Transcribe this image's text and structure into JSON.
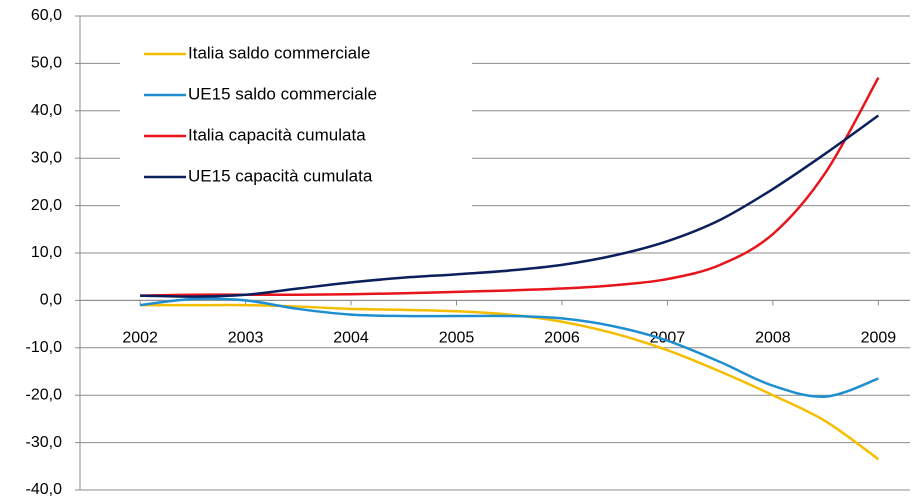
{
  "chart_data": {
    "type": "line",
    "x": [
      2002,
      2002.5,
      2003,
      2003.5,
      2004,
      2004.5,
      2005,
      2005.5,
      2006,
      2006.5,
      2007,
      2007.5,
      2008,
      2008.5,
      2009
    ],
    "xlim": [
      2001.43,
      2009.3
    ],
    "xticks": [
      2002,
      2003,
      2004,
      2005,
      2006,
      2007,
      2008,
      2009
    ],
    "ylim": [
      -40,
      60
    ],
    "yticks": [
      {
        "value": -40,
        "label": "-40,0"
      },
      {
        "value": -30,
        "label": "-30,0"
      },
      {
        "value": -20,
        "label": "-20,0"
      },
      {
        "value": -10,
        "label": "-10,0"
      },
      {
        "value": 0,
        "label": "0,0"
      },
      {
        "value": 10,
        "label": "10,0"
      },
      {
        "value": 20,
        "label": "20,0"
      },
      {
        "value": 30,
        "label": "30,0"
      },
      {
        "value": 40,
        "label": "40,0"
      },
      {
        "value": 50,
        "label": "50,0"
      },
      {
        "value": 60,
        "label": "60,0"
      }
    ],
    "grid": true,
    "legend": "upper left",
    "series": [
      {
        "name": "Italia saldo commerciale",
        "color": "#f5bd00",
        "values": [
          -1,
          -1,
          -1,
          -1.3,
          -1.8,
          -2,
          -2.3,
          -3,
          -4.5,
          -7,
          -10.5,
          -15,
          -20,
          -25.5,
          -33.5
        ]
      },
      {
        "name": "UE15 saldo commerciale",
        "color": "#1f8ed0",
        "values": [
          -1,
          0.3,
          0,
          -1.8,
          -3,
          -3.3,
          -3.3,
          -3.3,
          -3.8,
          -5.5,
          -8.5,
          -13,
          -18,
          -20.3,
          -16.5
        ]
      },
      {
        "name": "Italia capacità cumulata",
        "color": "#e8141c",
        "values": [
          1,
          1.2,
          1.2,
          1.2,
          1.3,
          1.5,
          1.8,
          2.1,
          2.5,
          3.2,
          4.5,
          7.5,
          14,
          27,
          47
        ]
      },
      {
        "name": "UE15 capacità cumulata",
        "color": "#0b1f5c",
        "values": [
          1,
          0.8,
          1.2,
          2.5,
          3.8,
          4.8,
          5.5,
          6.3,
          7.5,
          9.5,
          12.5,
          17,
          23.5,
          31,
          39
        ]
      }
    ]
  }
}
